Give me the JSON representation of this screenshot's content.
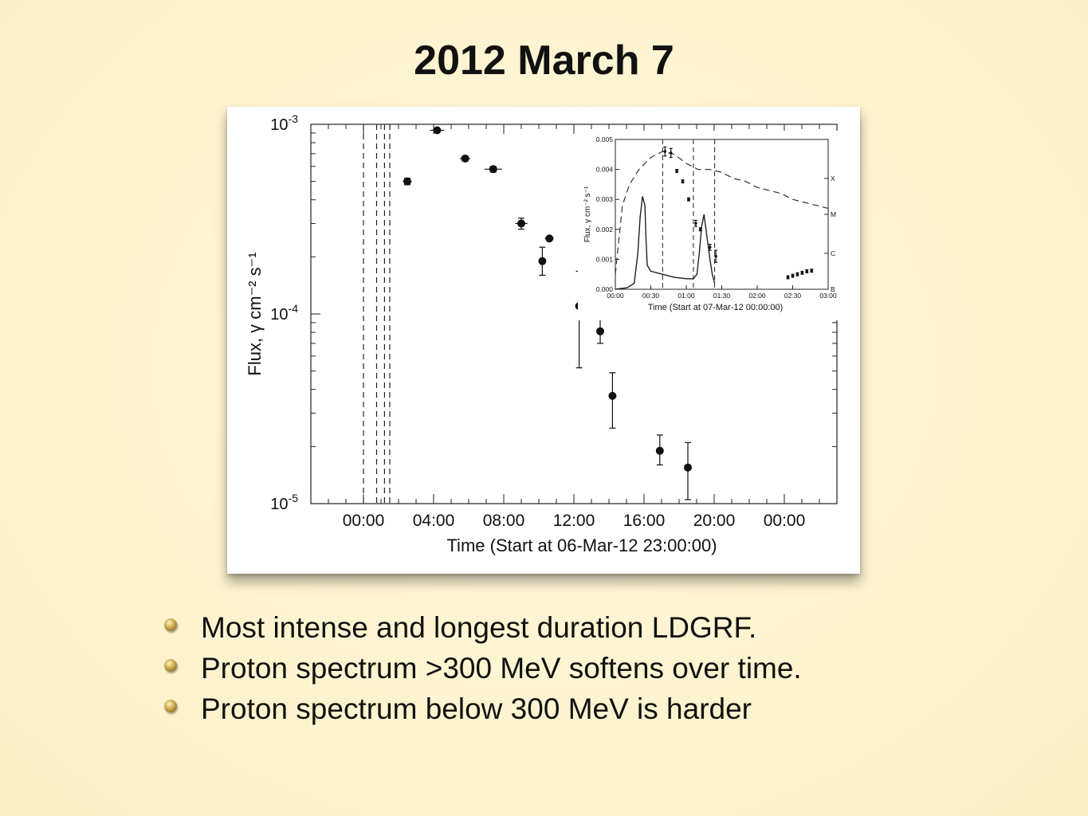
{
  "slide": {
    "title": "2012 March 7",
    "bullets": [
      "Most intense and longest duration LDGRF.",
      "Proton spectrum >300 MeV softens over time.",
      "Proton spectrum below 300 MeV is harder"
    ]
  },
  "chart_data": [
    {
      "type": "scatter",
      "ylabel": "Flux, γ cm⁻² s⁻¹",
      "xlabel": "Time (Start at 06-Mar-12 23:00:00)",
      "x_ticks": [
        "00:00",
        "04:00",
        "08:00",
        "12:00",
        "16:00",
        "20:00",
        "00:00"
      ],
      "x_tick_hours": [
        0,
        4,
        8,
        12,
        16,
        20,
        24
      ],
      "xlim_hours": [
        -3,
        27
      ],
      "y_scale": "log",
      "ylim": [
        1e-05,
        0.001
      ],
      "y_tick_labels": [
        {
          "value": 0.001,
          "base": "10",
          "exp": "-3"
        },
        {
          "value": 0.0001,
          "base": "10",
          "exp": "-4"
        },
        {
          "value": 1e-05,
          "base": "10",
          "exp": "-5"
        }
      ],
      "vlines_hours": [
        0.0,
        0.75,
        1.2,
        1.5
      ],
      "points": [
        {
          "x": 2.5,
          "y": 0.0005,
          "xerr": 0.25,
          "ylo": 0.00048,
          "yhi": 0.00052
        },
        {
          "x": 4.2,
          "y": 0.00093,
          "xerr": 0.4,
          "ylo": 0.00091,
          "yhi": 0.00095
        },
        {
          "x": 5.8,
          "y": 0.00066,
          "xerr": 0.3,
          "ylo": 0.00064,
          "yhi": 0.00068
        },
        {
          "x": 7.4,
          "y": 0.00058,
          "xerr": 0.5,
          "ylo": 0.00056,
          "yhi": 0.0006
        },
        {
          "x": 9.0,
          "y": 0.0003,
          "xerr": 0.35,
          "ylo": 0.00028,
          "yhi": 0.00032
        },
        {
          "x": 10.2,
          "y": 0.00019,
          "xerr": 0,
          "ylo": 0.00016,
          "yhi": 0.000225
        },
        {
          "x": 10.6,
          "y": 0.00025,
          "xerr": 0.25,
          "ylo": 0.000245,
          "yhi": 0.000255
        },
        {
          "x": 12.3,
          "y": 0.00011,
          "xerr": 0,
          "ylo": 5.2e-05,
          "yhi": 0.000168
        },
        {
          "x": 13.5,
          "y": 8.1e-05,
          "xerr": 0,
          "ylo": 7e-05,
          "yhi": 9.3e-05
        },
        {
          "x": 14.2,
          "y": 3.7e-05,
          "xerr": 0,
          "ylo": 2.5e-05,
          "yhi": 4.9e-05
        },
        {
          "x": 16.9,
          "y": 1.9e-05,
          "xerr": 0,
          "ylo": 1.6e-05,
          "yhi": 2.3e-05
        },
        {
          "x": 18.5,
          "y": 1.55e-05,
          "xerr": 0,
          "ylo": 1.05e-05,
          "yhi": 2.1e-05
        }
      ]
    },
    {
      "type": "line",
      "inset": true,
      "ylabel": "Flux, γ cm⁻² s⁻¹",
      "xlabel": "Time (Start at 07-Mar-12 00:00:00)",
      "x_ticks": [
        "00:00",
        "00:30",
        "01:00",
        "01:30",
        "02:00",
        "02:30",
        "03:00"
      ],
      "x_tick_minutes": [
        0,
        30,
        60,
        90,
        120,
        150,
        180
      ],
      "xlim_minutes": [
        0,
        180
      ],
      "ylim": [
        0,
        0.005
      ],
      "y_ticks": [
        "0.000",
        "0.001",
        "0.002",
        "0.003",
        "0.004",
        "0.005"
      ],
      "y_tick_values": [
        0,
        0.001,
        0.002,
        0.003,
        0.004,
        0.005
      ],
      "right_labels": [
        {
          "label": "X",
          "value": 0.0037
        },
        {
          "label": "M",
          "value": 0.0025
        },
        {
          "label": "C",
          "value": 0.0012
        },
        {
          "label": "B",
          "value": 0.0
        }
      ],
      "vlines_minutes": [
        40,
        66,
        84
      ],
      "dashed_curve": [
        [
          0,
          0.0005
        ],
        [
          6,
          0.0028
        ],
        [
          12,
          0.0035
        ],
        [
          20,
          0.004
        ],
        [
          30,
          0.0044
        ],
        [
          40,
          0.0046
        ],
        [
          50,
          0.0045
        ],
        [
          60,
          0.0042
        ],
        [
          70,
          0.004
        ],
        [
          80,
          0.004
        ],
        [
          90,
          0.0039
        ],
        [
          100,
          0.0037
        ],
        [
          110,
          0.0036
        ],
        [
          120,
          0.0034
        ],
        [
          130,
          0.0033
        ],
        [
          140,
          0.0032
        ],
        [
          150,
          0.003
        ],
        [
          160,
          0.0029
        ],
        [
          170,
          0.0028
        ],
        [
          180,
          0.0027
        ]
      ],
      "solid_curve": [
        [
          0,
          0
        ],
        [
          10,
          5e-05
        ],
        [
          16,
          0.0002
        ],
        [
          19,
          0.0012
        ],
        [
          21,
          0.0024
        ],
        [
          23,
          0.0031
        ],
        [
          25,
          0.0028
        ],
        [
          26,
          0.0016
        ],
        [
          27,
          0.0008
        ],
        [
          30,
          0.0006
        ],
        [
          40,
          0.0005
        ],
        [
          50,
          0.0004
        ],
        [
          60,
          0.00035
        ],
        [
          66,
          0.00035
        ],
        [
          69,
          0.0005
        ],
        [
          71,
          0.0012
        ],
        [
          73,
          0.0021
        ],
        [
          75,
          0.0025
        ],
        [
          76,
          0.0022
        ],
        [
          78,
          0.0016
        ],
        [
          80,
          0.001
        ],
        [
          82,
          0.0005
        ],
        [
          84,
          0.0002
        ]
      ],
      "points": [
        {
          "x": 42,
          "y": 0.0046,
          "xerr": 1,
          "ylo": 0.00445,
          "yhi": 0.00475
        },
        {
          "x": 47,
          "y": 0.00455,
          "xerr": 1,
          "ylo": 0.0044,
          "yhi": 0.0047
        },
        {
          "x": 52,
          "y": 0.00395,
          "xerr": 1,
          "ylo": 0.0039,
          "yhi": 0.004
        },
        {
          "x": 57,
          "y": 0.0036,
          "xerr": 1,
          "ylo": 0.00355,
          "yhi": 0.00365
        },
        {
          "x": 62,
          "y": 0.003,
          "xerr": 1,
          "ylo": 0.00295,
          "yhi": 0.00305
        },
        {
          "x": 68,
          "y": 0.0022,
          "xerr": 1,
          "ylo": 0.0021,
          "yhi": 0.0023
        },
        {
          "x": 72,
          "y": 0.002,
          "xerr": 0,
          "ylo": 0.00195,
          "yhi": 0.00205
        },
        {
          "x": 80,
          "y": 0.0014,
          "xerr": 0,
          "ylo": 0.0013,
          "yhi": 0.0015
        },
        {
          "x": 85,
          "y": 0.0011,
          "xerr": 0,
          "ylo": 0.0009,
          "yhi": 0.0013
        },
        {
          "x": 146,
          "y": 0.0004,
          "xerr": 1,
          "ylo": 0.00035,
          "yhi": 0.00045
        },
        {
          "x": 150,
          "y": 0.00045,
          "xerr": 1,
          "ylo": 0.0004,
          "yhi": 0.0005
        },
        {
          "x": 154,
          "y": 0.0005,
          "xerr": 1,
          "ylo": 0.00045,
          "yhi": 0.00055
        },
        {
          "x": 158,
          "y": 0.00055,
          "xerr": 1,
          "ylo": 0.0005,
          "yhi": 0.0006
        },
        {
          "x": 162,
          "y": 0.0006,
          "xerr": 1,
          "ylo": 0.00055,
          "yhi": 0.00065
        },
        {
          "x": 166,
          "y": 0.00062,
          "xerr": 1,
          "ylo": 0.00057,
          "yhi": 0.00067
        }
      ]
    }
  ]
}
